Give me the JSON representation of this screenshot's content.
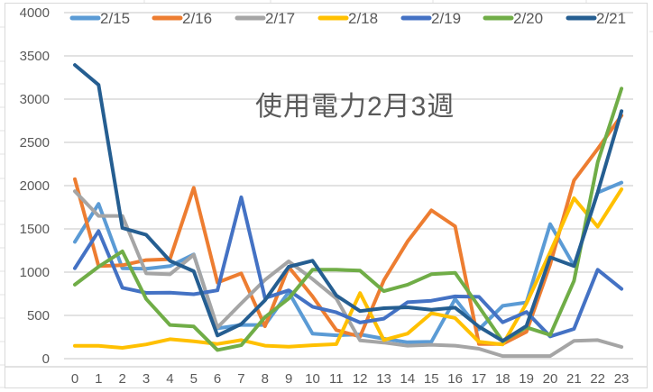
{
  "chart_data": {
    "type": "line",
    "title": "使用電力2月3週",
    "xlabel": "",
    "ylabel": "",
    "ylim": [
      0,
      4000
    ],
    "yticks": [
      0,
      500,
      1000,
      1500,
      2000,
      2500,
      3000,
      3500,
      4000
    ],
    "grid": true,
    "legend_position": "top",
    "x": [
      0,
      1,
      2,
      3,
      4,
      5,
      6,
      7,
      8,
      9,
      10,
      11,
      12,
      13,
      14,
      15,
      16,
      17,
      18,
      19,
      20,
      21,
      22,
      23
    ],
    "categories": [
      "0",
      "1",
      "2",
      "3",
      "4",
      "5",
      "6",
      "7",
      "8",
      "9",
      "10",
      "11",
      "12",
      "13",
      "14",
      "15",
      "16",
      "17",
      "18",
      "19",
      "20",
      "21",
      "22",
      "23"
    ],
    "series": [
      {
        "name": "2/15",
        "color": "#5B9BD5",
        "values": [
          1350,
          1790,
          1045,
          1040,
          1070,
          1205,
          350,
          390,
          390,
          770,
          290,
          270,
          280,
          230,
          190,
          195,
          690,
          340,
          610,
          650,
          1555,
          1075,
          1920,
          2035
        ]
      },
      {
        "name": "2/16",
        "color": "#ED7D31",
        "values": [
          2075,
          1070,
          1080,
          1140,
          1150,
          1975,
          880,
          985,
          375,
          1060,
          720,
          330,
          255,
          905,
          1355,
          1715,
          1530,
          170,
          170,
          310,
          1090,
          2060,
          2425,
          2810
        ]
      },
      {
        "name": "2/17",
        "color": "#A5A5A5",
        "values": [
          1935,
          1650,
          1650,
          985,
          975,
          1200,
          360,
          640,
          910,
          1125,
          920,
          695,
          210,
          185,
          150,
          160,
          150,
          115,
          30,
          30,
          30,
          205,
          215,
          135
        ]
      },
      {
        "name": "2/18",
        "color": "#FFC000",
        "values": [
          148,
          148,
          125,
          165,
          225,
          200,
          170,
          215,
          150,
          138,
          155,
          168,
          758,
          216,
          290,
          525,
          470,
          195,
          165,
          640,
          1230,
          1855,
          1525,
          1958
        ]
      },
      {
        "name": "2/19",
        "color": "#4472C4",
        "values": [
          1045,
          1475,
          820,
          760,
          762,
          745,
          790,
          1866,
          700,
          790,
          600,
          535,
          418,
          462,
          652,
          670,
          720,
          715,
          420,
          540,
          257,
          344,
          1028,
          806
        ]
      },
      {
        "name": "2/20",
        "color": "#70AD47",
        "values": [
          855,
          1062,
          1241,
          690,
          390,
          372,
          100,
          155,
          480,
          695,
          1028,
          1028,
          1018,
          780,
          855,
          976,
          993,
          600,
          200,
          361,
          274,
          899,
          2271,
          3122
        ]
      },
      {
        "name": "2/21",
        "color": "#255E91",
        "values": [
          3395,
          3165,
          1510,
          1431,
          1131,
          1010,
          268,
          400,
          675,
          1062,
          1132,
          730,
          550,
          583,
          594,
          566,
          590,
          370,
          205,
          378,
          1172,
          1070,
          1924,
          2861
        ]
      }
    ]
  },
  "title": "使用電力2月3週",
  "legend": [
    {
      "label": "2/15",
      "color": "#5B9BD5"
    },
    {
      "label": "2/16",
      "color": "#ED7D31"
    },
    {
      "label": "2/17",
      "color": "#A5A5A5"
    },
    {
      "label": "2/18",
      "color": "#FFC000"
    },
    {
      "label": "2/19",
      "color": "#4472C4"
    },
    {
      "label": "2/20",
      "color": "#70AD47"
    },
    {
      "label": "2/21",
      "color": "#255E91"
    }
  ],
  "y_axis": {
    "labels": [
      "0",
      "500",
      "1000",
      "1500",
      "2000",
      "2500",
      "3000",
      "3500",
      "4000"
    ]
  },
  "x_axis": {
    "labels": [
      "0",
      "1",
      "2",
      "3",
      "4",
      "5",
      "6",
      "7",
      "8",
      "9",
      "10",
      "11",
      "12",
      "13",
      "14",
      "15",
      "16",
      "17",
      "18",
      "19",
      "20",
      "21",
      "22",
      "23"
    ]
  }
}
